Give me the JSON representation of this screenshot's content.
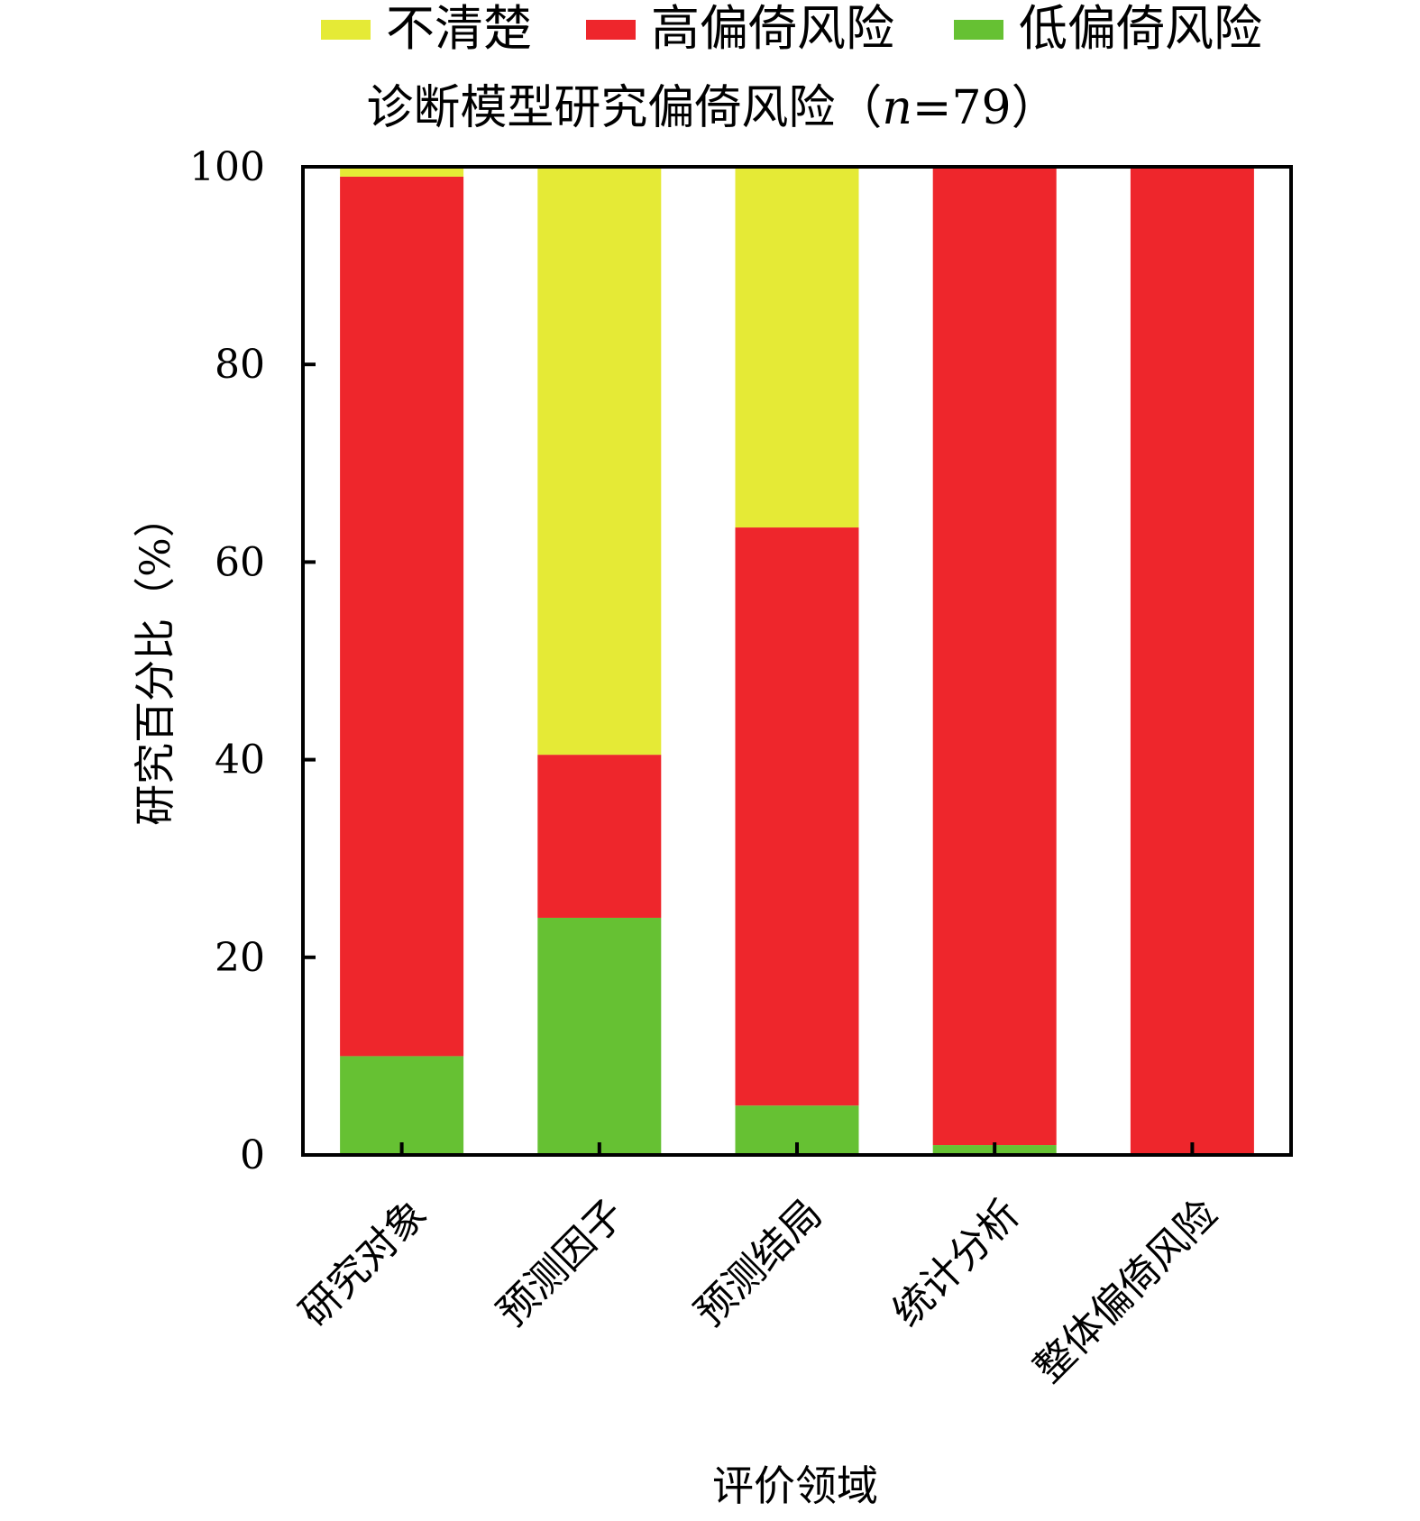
{
  "chart_data": {
    "type": "bar",
    "stacked": true,
    "title_parts": {
      "prefix": "诊断模型研究偏倚风险（",
      "italic": "n",
      "suffix": "=79）"
    },
    "xlabel": "评价领域",
    "ylabel": "研究百分比（%）",
    "ylim": [
      0,
      100
    ],
    "yticks": [
      "0",
      "20",
      "40",
      "60",
      "80",
      "100"
    ],
    "categories": [
      "研究对象",
      "预测因子",
      "预测结局",
      "统计分析",
      "整体偏倚风险"
    ],
    "legend": [
      {
        "label": "不清楚",
        "color": "#e5ea36"
      },
      {
        "label": "高偏倚风险",
        "color": "#ee262c"
      },
      {
        "label": "低偏倚风险",
        "color": "#66c133"
      }
    ],
    "legend_position": "top",
    "grid": false,
    "series": [
      {
        "name": "低偏倚风险",
        "color": "#66c133",
        "values": [
          10,
          24,
          5,
          1,
          0
        ]
      },
      {
        "name": "高偏倚风险",
        "color": "#ee262c",
        "values": [
          89,
          16.5,
          58.5,
          99,
          100
        ]
      },
      {
        "name": "不清楚",
        "color": "#e5ea36",
        "values": [
          1,
          59.5,
          36.5,
          0,
          0
        ]
      }
    ]
  }
}
